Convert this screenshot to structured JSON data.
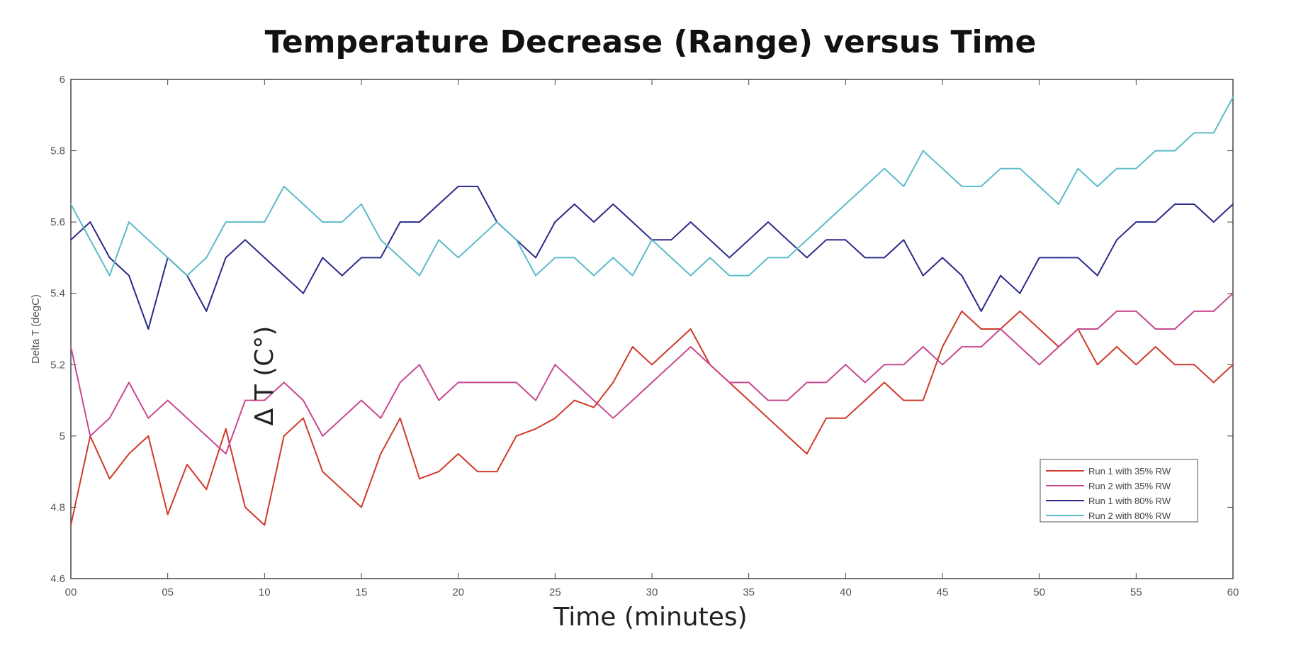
{
  "chart_data": {
    "type": "line",
    "title": "Temperature Decrease (Range) versus Time",
    "xlabel": "Time (minutes)",
    "ylabel": "Delta T (degC)",
    "ylabel_overlay": "Δ T (C°)",
    "xlim": [
      0,
      60
    ],
    "ylim": [
      4.6,
      6
    ],
    "xticks": [
      0,
      5,
      10,
      15,
      20,
      25,
      30,
      35,
      40,
      45,
      50,
      55,
      60
    ],
    "xtick_labels": [
      "00",
      "05",
      "10",
      "15",
      "20",
      "25",
      "30",
      "35",
      "40",
      "45",
      "50",
      "55",
      "60"
    ],
    "yticks": [
      4.6,
      4.8,
      5,
      5.2,
      5.4,
      5.6,
      5.8,
      6
    ],
    "ytick_labels": [
      "4.6",
      "4.8",
      "5",
      "5.2",
      "5.4",
      "5.6",
      "5.8",
      "6"
    ],
    "grid": false,
    "legend_position": "lower-right",
    "series": [
      {
        "name": "Run 1 with 35% RW",
        "color": "#d03a2a",
        "x": [
          0,
          1,
          2,
          3,
          4,
          5,
          6,
          7,
          8,
          9,
          10,
          11,
          12,
          13,
          14,
          15,
          16,
          17,
          18,
          19,
          20,
          21,
          22,
          23,
          24,
          25,
          26,
          27,
          28,
          29,
          30,
          31,
          32,
          33,
          34,
          35,
          36,
          37,
          38,
          39,
          40,
          41,
          42,
          43,
          44,
          45,
          46,
          47,
          48,
          49,
          50,
          51,
          52,
          53,
          54,
          55,
          56,
          57,
          58,
          59,
          60
        ],
        "y": [
          4.75,
          5.0,
          4.88,
          4.95,
          5.0,
          4.78,
          4.92,
          4.85,
          5.02,
          4.8,
          4.75,
          5.0,
          5.05,
          4.9,
          4.85,
          4.8,
          4.95,
          5.05,
          4.88,
          4.9,
          4.95,
          4.9,
          4.9,
          5.0,
          5.02,
          5.05,
          5.1,
          5.08,
          5.15,
          5.25,
          5.2,
          5.25,
          5.3,
          5.2,
          5.15,
          5.1,
          5.05,
          5.0,
          4.95,
          5.05,
          5.05,
          5.1,
          5.15,
          5.1,
          5.1,
          5.25,
          5.35,
          5.3,
          5.3,
          5.35,
          5.3,
          5.25,
          5.3,
          5.2,
          5.25,
          5.2,
          5.25,
          5.2,
          5.2,
          5.15,
          5.2
        ]
      },
      {
        "name": "Run 2 with 35% RW",
        "color": "#c8488f",
        "x": [
          0,
          1,
          2,
          3,
          4,
          5,
          6,
          7,
          8,
          9,
          10,
          11,
          12,
          13,
          14,
          15,
          16,
          17,
          18,
          19,
          20,
          21,
          22,
          23,
          24,
          25,
          26,
          27,
          28,
          29,
          30,
          31,
          32,
          33,
          34,
          35,
          36,
          37,
          38,
          39,
          40,
          41,
          42,
          43,
          44,
          45,
          46,
          47,
          48,
          49,
          50,
          51,
          52,
          53,
          54,
          55,
          56,
          57,
          58,
          59,
          60
        ],
        "y": [
          5.25,
          5.0,
          5.05,
          5.15,
          5.05,
          5.1,
          5.05,
          5.0,
          4.95,
          5.1,
          5.1,
          5.15,
          5.1,
          5.0,
          5.05,
          5.1,
          5.05,
          5.15,
          5.2,
          5.1,
          5.15,
          5.15,
          5.15,
          5.15,
          5.1,
          5.2,
          5.15,
          5.1,
          5.05,
          5.1,
          5.15,
          5.2,
          5.25,
          5.2,
          5.15,
          5.15,
          5.1,
          5.1,
          5.15,
          5.15,
          5.2,
          5.15,
          5.2,
          5.2,
          5.25,
          5.2,
          5.25,
          5.25,
          5.3,
          5.25,
          5.2,
          5.25,
          5.3,
          5.3,
          5.35,
          5.35,
          5.3,
          5.3,
          5.35,
          5.35,
          5.4
        ]
      },
      {
        "name": "Run 1 with 80% RW",
        "color": "#2a2a8a",
        "x": [
          0,
          1,
          2,
          3,
          4,
          5,
          6,
          7,
          8,
          9,
          10,
          11,
          12,
          13,
          14,
          15,
          16,
          17,
          18,
          19,
          20,
          21,
          22,
          23,
          24,
          25,
          26,
          27,
          28,
          29,
          30,
          31,
          32,
          33,
          34,
          35,
          36,
          37,
          38,
          39,
          40,
          41,
          42,
          43,
          44,
          45,
          46,
          47,
          48,
          49,
          50,
          51,
          52,
          53,
          54,
          55,
          56,
          57,
          58,
          59,
          60
        ],
        "y": [
          5.55,
          5.6,
          5.5,
          5.45,
          5.3,
          5.5,
          5.45,
          5.35,
          5.5,
          5.55,
          5.5,
          5.45,
          5.4,
          5.5,
          5.45,
          5.5,
          5.5,
          5.6,
          5.6,
          5.65,
          5.7,
          5.7,
          5.6,
          5.55,
          5.5,
          5.6,
          5.65,
          5.6,
          5.65,
          5.6,
          5.55,
          5.55,
          5.6,
          5.55,
          5.5,
          5.55,
          5.6,
          5.55,
          5.5,
          5.55,
          5.55,
          5.5,
          5.5,
          5.55,
          5.45,
          5.5,
          5.45,
          5.35,
          5.45,
          5.4,
          5.5,
          5.5,
          5.5,
          5.45,
          5.55,
          5.6,
          5.6,
          5.65,
          5.65,
          5.6,
          5.65
        ]
      },
      {
        "name": "Run 2 with 80% RW",
        "color": "#5bbcc8",
        "x": [
          0,
          1,
          2,
          3,
          4,
          5,
          6,
          7,
          8,
          9,
          10,
          11,
          12,
          13,
          14,
          15,
          16,
          17,
          18,
          19,
          20,
          21,
          22,
          23,
          24,
          25,
          26,
          27,
          28,
          29,
          30,
          31,
          32,
          33,
          34,
          35,
          36,
          37,
          38,
          39,
          40,
          41,
          42,
          43,
          44,
          45,
          46,
          47,
          48,
          49,
          50,
          51,
          52,
          53,
          54,
          55,
          56,
          57,
          58,
          59,
          60
        ],
        "y": [
          5.65,
          5.55,
          5.45,
          5.6,
          5.55,
          5.5,
          5.45,
          5.5,
          5.6,
          5.6,
          5.6,
          5.7,
          5.65,
          5.6,
          5.6,
          5.65,
          5.55,
          5.5,
          5.45,
          5.55,
          5.5,
          5.55,
          5.6,
          5.55,
          5.45,
          5.5,
          5.5,
          5.45,
          5.5,
          5.45,
          5.55,
          5.5,
          5.45,
          5.5,
          5.45,
          5.45,
          5.5,
          5.5,
          5.55,
          5.6,
          5.65,
          5.7,
          5.75,
          5.7,
          5.8,
          5.75,
          5.7,
          5.7,
          5.75,
          5.75,
          5.7,
          5.65,
          5.75,
          5.7,
          5.75,
          5.75,
          5.8,
          5.8,
          5.85,
          5.85,
          5.95
        ]
      }
    ]
  }
}
